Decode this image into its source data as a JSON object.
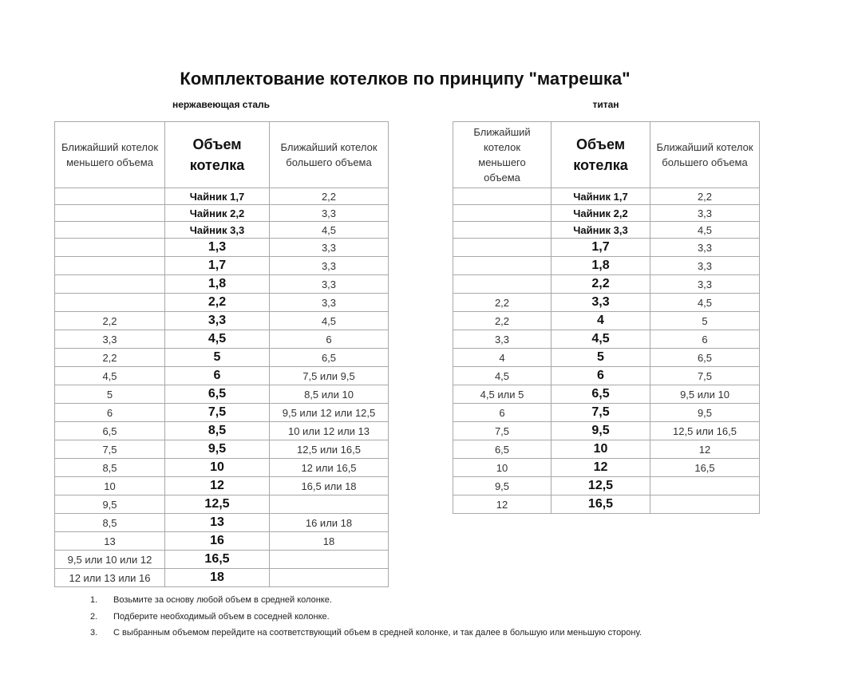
{
  "title": "Комплектование котелков по принципу \"матрешка\"",
  "headers": {
    "smaller": "Ближайший котелок меньшего объема",
    "volume": "Объем котелка",
    "larger": "Ближайший котелок большего объема",
    "larger_right": "Ближайший котелок большего объема"
  },
  "steel": {
    "label": "нержавеющая сталь",
    "rows": [
      [
        "",
        "Чайник 1,7",
        "2,2"
      ],
      [
        "",
        "Чайник 2,2",
        "3,3"
      ],
      [
        "",
        "Чайник 3,3",
        "4,5"
      ],
      [
        "",
        "1,3",
        "3,3"
      ],
      [
        "",
        "1,7",
        "3,3"
      ],
      [
        "",
        "1,8",
        "3,3"
      ],
      [
        "",
        "2,2",
        "3,3"
      ],
      [
        "2,2",
        "3,3",
        "4,5"
      ],
      [
        "3,3",
        "4,5",
        "6"
      ],
      [
        "2,2",
        "5",
        "6,5"
      ],
      [
        "4,5",
        "6",
        "7,5 или 9,5"
      ],
      [
        "5",
        "6,5",
        "8,5 или 10"
      ],
      [
        "6",
        "7,5",
        "9,5 или 12 или 12,5"
      ],
      [
        "6,5",
        "8,5",
        "10 или 12 или 13"
      ],
      [
        "7,5",
        "9,5",
        "12,5 или 16,5"
      ],
      [
        "8,5",
        "10",
        "12 или 16,5"
      ],
      [
        "10",
        "12",
        "16,5 или 18"
      ],
      [
        "9,5",
        "12,5",
        ""
      ],
      [
        "8,5",
        "13",
        "16 или 18"
      ],
      [
        "13",
        "16",
        "18"
      ],
      [
        "9,5 или 10 или 12",
        "16,5",
        ""
      ],
      [
        "12 или 13 или 16",
        "18",
        ""
      ]
    ]
  },
  "titanium": {
    "label": "титан",
    "rows": [
      [
        "",
        "Чайник 1,7",
        "2,2"
      ],
      [
        "",
        "Чайник 2,2",
        "3,3"
      ],
      [
        "",
        "Чайник 3,3",
        "4,5"
      ],
      [
        "",
        "1,7",
        "3,3"
      ],
      [
        "",
        "1,8",
        "3,3"
      ],
      [
        "",
        "2,2",
        "3,3"
      ],
      [
        "2,2",
        "3,3",
        "4,5"
      ],
      [
        "2,2",
        "4",
        "5"
      ],
      [
        "3,3",
        "4,5",
        "6"
      ],
      [
        "4",
        "5",
        "6,5"
      ],
      [
        "4,5",
        "6",
        "7,5"
      ],
      [
        "4,5 или 5",
        "6,5",
        "9,5 или 10"
      ],
      [
        "6",
        "7,5",
        "9,5"
      ],
      [
        "7,5",
        "9,5",
        "12,5 или 16,5"
      ],
      [
        "6,5",
        "10",
        "12"
      ],
      [
        "10",
        "12",
        "16,5"
      ],
      [
        "9,5",
        "12,5",
        ""
      ],
      [
        "12",
        "16,5",
        ""
      ]
    ]
  },
  "notes": [
    {
      "num": "1.",
      "text": "Возьмите за основу любой объем в средней колонке."
    },
    {
      "num": "2.",
      "text": "Подберите необходимый объем в соседней колонке."
    },
    {
      "num": "3.",
      "text": "С выбранным объемом перейдите на соответствующий объем в средней колонке, и так далее в большую или меньшую сторону."
    }
  ]
}
